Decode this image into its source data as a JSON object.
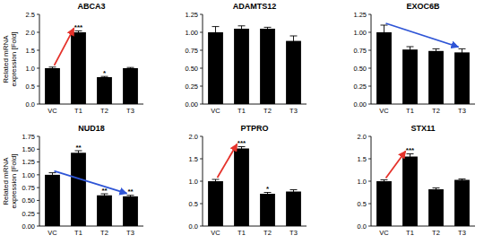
{
  "chart_data": [
    {
      "type": "bar",
      "title": "ABCA3",
      "categories": [
        "VC",
        "T1",
        "T2",
        "T3"
      ],
      "values": [
        1.0,
        2.0,
        0.75,
        1.0
      ],
      "errors": [
        0.03,
        0.04,
        0.02,
        0.02
      ],
      "annotations": [
        null,
        "***",
        "*",
        null
      ],
      "color": "#000000",
      "ylim": [
        0,
        2.5
      ],
      "yticks": [
        {
          "value": 0,
          "label": "0.0"
        },
        {
          "value": 0.5,
          "label": "0.5"
        },
        {
          "value": 1,
          "label": "1.0"
        },
        {
          "value": 1.5,
          "label": "1.5"
        },
        {
          "value": 2,
          "label": "2.0"
        },
        {
          "value": 2.5,
          "label": "2.5"
        }
      ],
      "y_label": [
        "Related mRNA",
        "expression [Fold]"
      ]
    },
    {
      "type": "bar",
      "title": "ADAMTS12",
      "categories": [
        "VC",
        "T1",
        "T2",
        "T3"
      ],
      "values": [
        1.0,
        1.05,
        1.05,
        0.88
      ],
      "errors": [
        0.08,
        0.04,
        0.02,
        0.07
      ],
      "color": "#000000",
      "ylim": [
        0,
        1.25
      ],
      "yticks": [
        {
          "value": 0,
          "label": "0.00"
        },
        0.25,
        {
          "value": 0.5,
          "label": "0.50"
        },
        0.75,
        {
          "value": 1,
          "label": "1.00"
        },
        1.25
      ]
    },
    {
      "type": "bar",
      "title": "EXOC6B",
      "categories": [
        "VC",
        "T1",
        "T2",
        "T3"
      ],
      "values": [
        1.0,
        0.76,
        0.74,
        0.72
      ],
      "errors": [
        0.1,
        0.04,
        0.03,
        0.05
      ],
      "color": "#000000",
      "ylim": [
        0,
        1.25
      ],
      "yticks": [
        {
          "value": 0,
          "label": "0.00"
        },
        0.25,
        {
          "value": 0.5,
          "label": "0.50"
        },
        0.75,
        {
          "value": 1,
          "label": "1.00"
        },
        1.25
      ]
    },
    {
      "type": "bar",
      "title": "NUD18",
      "categories": [
        "VC",
        "T1",
        "T2",
        "T3"
      ],
      "values": [
        1.0,
        1.43,
        0.6,
        0.58
      ],
      "errors": [
        0.04,
        0.04,
        0.03,
        0.02
      ],
      "annotations": [
        null,
        "**",
        "**",
        "**"
      ],
      "color": "#000000",
      "ylim": [
        0,
        1.75
      ],
      "yticks": [
        {
          "value": 0,
          "label": "0.00"
        },
        0.25,
        {
          "value": 0.5,
          "label": "0.50"
        },
        0.75,
        {
          "value": 1,
          "label": "1.00"
        },
        1.25,
        {
          "value": 1.5,
          "label": "1.50"
        },
        1.75
      ],
      "y_label": [
        "Related mRNA",
        "expression [Fold]"
      ]
    },
    {
      "type": "bar",
      "title": "PTPRO",
      "categories": [
        "VC",
        "T1",
        "T2",
        "T3"
      ],
      "values": [
        1.0,
        1.73,
        0.72,
        0.77
      ],
      "errors": [
        0.04,
        0.04,
        0.03,
        0.04
      ],
      "annotations": [
        null,
        "***",
        "*",
        null
      ],
      "color": "#000000",
      "ylim": [
        0,
        2
      ],
      "yticks": [
        {
          "value": 0,
          "label": "0.0"
        },
        0.5,
        {
          "value": 1,
          "label": "1.0"
        },
        1.5,
        {
          "value": 2,
          "label": "2.0"
        }
      ]
    },
    {
      "type": "bar",
      "title": "STX11",
      "categories": [
        "VC",
        "T1",
        "T2",
        "T3"
      ],
      "values": [
        1.0,
        1.55,
        0.82,
        1.03
      ],
      "errors": [
        0.03,
        0.06,
        0.03,
        0.02
      ],
      "annotations": [
        null,
        "***",
        null,
        null
      ],
      "color": "#000000",
      "ylim": [
        0,
        2
      ],
      "yticks": [
        {
          "value": 0,
          "label": "0.0"
        },
        0.5,
        {
          "value": 1,
          "label": "1.0"
        },
        1.5,
        {
          "value": 2,
          "label": "2.0"
        }
      ]
    }
  ]
}
